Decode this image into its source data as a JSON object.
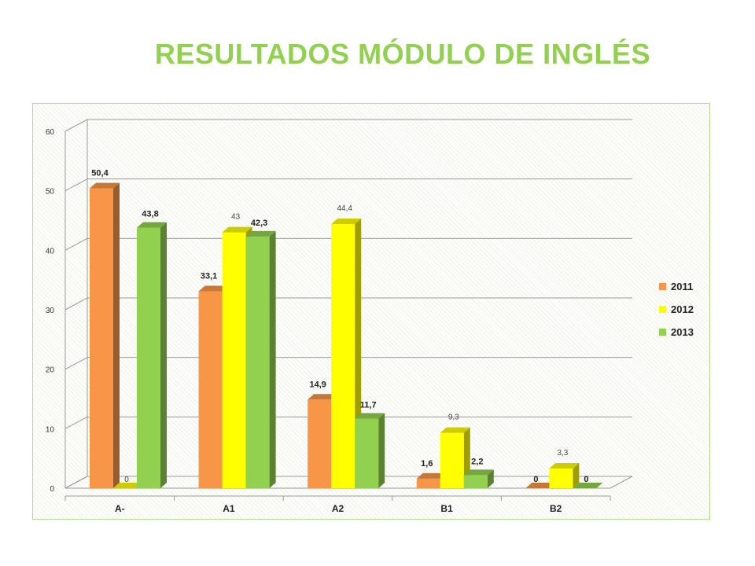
{
  "page": {
    "title": "RESULTADOS MÓDULO DE INGLÉS"
  },
  "chart_data": {
    "type": "bar",
    "style": "3d-clustered-column",
    "title": "RESULTADOS MÓDULO DE INGLÉS",
    "categories": [
      "A-",
      "A1",
      "A2",
      "B1",
      "B2"
    ],
    "series": [
      {
        "name": "2011",
        "values": [
          50.4,
          33.1,
          14.9,
          1.6,
          0
        ],
        "labels": [
          "50,4",
          "33,1",
          "14,9",
          "1,6",
          "0"
        ],
        "color": "#f79646"
      },
      {
        "name": "2012",
        "values": [
          0,
          43,
          44.4,
          9.3,
          3.3
        ],
        "labels": [
          "0",
          "43",
          "44,4",
          "9,3",
          "3,3"
        ],
        "color": "#ffff00"
      },
      {
        "name": "2013",
        "values": [
          43.8,
          42.3,
          11.7,
          2.2,
          0
        ],
        "labels": [
          "43,8",
          "42,3",
          "11,7",
          "2,2",
          "0"
        ],
        "color": "#92d050"
      }
    ],
    "yticks": [
      "0",
      "10",
      "20",
      "30",
      "40",
      "50",
      "60"
    ],
    "ylim": [
      0,
      60
    ],
    "grid": true,
    "legend_position": "right"
  }
}
